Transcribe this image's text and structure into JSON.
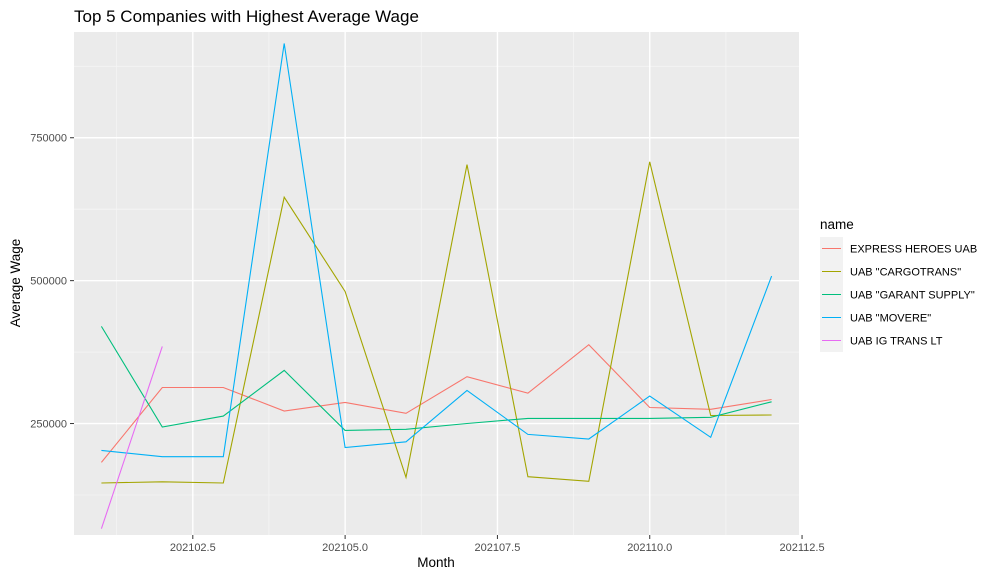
{
  "chart_data": {
    "type": "line",
    "title": "Top 5 Companies with Highest Average Wage",
    "xlabel": "Month",
    "ylabel": "Average Wage",
    "xlim": [
      202100.55,
      202112.45
    ],
    "ylim": [
      55000,
      935000
    ],
    "x_ticks": [
      202102.5,
      202105.0,
      202107.5,
      202110.0,
      202112.5
    ],
    "x_tick_labels": [
      "202102.5",
      "202105.0",
      "202107.5",
      "202110.0",
      "202112.5"
    ],
    "y_ticks": [
      250000,
      500000,
      750000
    ],
    "y_tick_labels": [
      "250000",
      "500000",
      "750000"
    ],
    "grid": true,
    "legend": {
      "title": "name",
      "position": "right"
    },
    "series": [
      {
        "name": "EXPRESS HEROES UAB",
        "color": "#F8766D",
        "x": [
          202101,
          202102,
          202103,
          202104,
          202105,
          202106,
          202107,
          202108,
          202109,
          202110,
          202111,
          202112
        ],
        "y": [
          182000,
          313000,
          313000,
          272000,
          287000,
          268000,
          332000,
          303000,
          388000,
          278000,
          275000,
          292000
        ]
      },
      {
        "name": "UAB \"CARGOTRANS\"",
        "color": "#A3A500",
        "x": [
          202101,
          202102,
          202103,
          202104,
          202105,
          202106,
          202107,
          202108,
          202109,
          202110,
          202111,
          202112
        ],
        "y": [
          146000,
          148000,
          146000,
          646000,
          481000,
          156000,
          703000,
          157000,
          149000,
          708000,
          264000,
          265000
        ]
      },
      {
        "name": "UAB \"GARANT SUPPLY\"",
        "color": "#00BF7D",
        "x": [
          202101,
          202102,
          202103,
          202104,
          202105,
          202106,
          202107,
          202108,
          202109,
          202110,
          202111,
          202112
        ],
        "y": [
          420000,
          244000,
          263000,
          343000,
          238000,
          240000,
          250000,
          259000,
          259000,
          259000,
          261000,
          288000
        ]
      },
      {
        "name": "UAB \"MOVERE\"",
        "color": "#00B0F6",
        "x": [
          202101,
          202102,
          202103,
          202104,
          202105,
          202106,
          202107,
          202108,
          202109,
          202110,
          202111,
          202112
        ],
        "y": [
          203000,
          192000,
          192000,
          915000,
          208000,
          218000,
          308000,
          231000,
          223000,
          298000,
          226000,
          508000
        ]
      },
      {
        "name": "UAB IG TRANS LT",
        "color": "#E76BF3",
        "x": [
          202101,
          202102
        ],
        "y": [
          66000,
          385000
        ]
      }
    ]
  }
}
